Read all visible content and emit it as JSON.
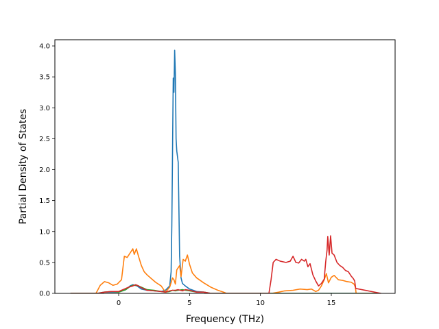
{
  "chart_data": {
    "type": "line",
    "title": "",
    "xlabel": "Frequency (THz)",
    "ylabel": "Partial Density of States",
    "xlim": [
      -4.5,
      19.5
    ],
    "ylim": [
      0,
      4.1
    ],
    "xticks": [
      0,
      5,
      10,
      15
    ],
    "xtick_labels": [
      "0",
      "5",
      "10",
      "15"
    ],
    "yticks": [
      0.0,
      0.5,
      1.0,
      1.5,
      2.0,
      2.5,
      3.0,
      3.5,
      4.0
    ],
    "ytick_labels": [
      "0.0",
      "0.5",
      "1.0",
      "1.5",
      "2.0",
      "2.5",
      "3.0",
      "3.5",
      "4.0"
    ],
    "grid": false,
    "legend": "none",
    "series": [
      {
        "color": "#1f77b4",
        "x": [
          -3.4,
          -1.5,
          -1.0,
          -0.5,
          0.0,
          0.5,
          0.8,
          1.0,
          1.3,
          1.6,
          2.0,
          2.5,
          3.0,
          3.3,
          3.6,
          3.7,
          3.75,
          3.85,
          3.9,
          3.95,
          4.0,
          4.05,
          4.1,
          4.2,
          4.3,
          4.4,
          4.5,
          4.7,
          5.0,
          5.5,
          6.0,
          6.5,
          18.5
        ],
        "y": [
          0.0,
          0.0,
          0.02,
          0.02,
          0.02,
          0.06,
          0.12,
          0.14,
          0.12,
          0.07,
          0.05,
          0.04,
          0.03,
          0.05,
          0.12,
          0.35,
          1.1,
          3.48,
          3.25,
          3.93,
          3.55,
          2.5,
          2.3,
          2.12,
          0.6,
          0.25,
          0.16,
          0.12,
          0.07,
          0.03,
          0.02,
          0.0,
          0.0
        ]
      },
      {
        "color": "#ff7f0e",
        "x": [
          -3.4,
          -1.6,
          -1.3,
          -1.0,
          -0.7,
          -0.4,
          -0.1,
          0.2,
          0.4,
          0.6,
          0.8,
          1.0,
          1.1,
          1.25,
          1.4,
          1.6,
          1.8,
          2.0,
          2.3,
          2.6,
          3.0,
          3.3,
          3.6,
          3.8,
          3.9,
          4.0,
          4.1,
          4.3,
          4.4,
          4.55,
          4.7,
          4.85,
          5.0,
          5.2,
          5.5,
          6.0,
          6.5,
          7.0,
          7.4,
          7.6,
          10.8,
          11.3,
          11.7,
          12.3,
          12.8,
          13.3,
          13.6,
          13.9,
          14.1,
          14.3,
          14.5,
          14.65,
          14.8,
          15.0,
          15.2,
          15.5,
          15.8,
          16.1,
          16.4,
          16.6,
          16.7,
          16.75,
          18.5
        ],
        "y": [
          0.0,
          0.0,
          0.13,
          0.19,
          0.17,
          0.13,
          0.15,
          0.22,
          0.6,
          0.58,
          0.65,
          0.72,
          0.63,
          0.72,
          0.6,
          0.45,
          0.35,
          0.3,
          0.24,
          0.18,
          0.12,
          0.02,
          0.1,
          0.25,
          0.22,
          0.15,
          0.38,
          0.45,
          0.27,
          0.55,
          0.52,
          0.62,
          0.47,
          0.33,
          0.25,
          0.17,
          0.1,
          0.05,
          0.02,
          0.0,
          0.0,
          0.02,
          0.04,
          0.05,
          0.07,
          0.06,
          0.07,
          0.03,
          0.05,
          0.12,
          0.22,
          0.32,
          0.17,
          0.26,
          0.29,
          0.22,
          0.21,
          0.19,
          0.18,
          0.15,
          0.1,
          0.0,
          0.0
        ]
      },
      {
        "color": "#2ca02c",
        "x": [
          -3.4,
          -1.5,
          -1.0,
          -0.5,
          0.0,
          0.5,
          0.8,
          1.0,
          1.3,
          1.6,
          2.0,
          2.5,
          3.0,
          3.3,
          3.6,
          3.8,
          4.0,
          4.2,
          4.5,
          4.7,
          5.0,
          5.5,
          6.0,
          6.5,
          18.5
        ],
        "y": [
          0.0,
          0.0,
          0.02,
          0.03,
          0.02,
          0.06,
          0.11,
          0.13,
          0.13,
          0.1,
          0.06,
          0.05,
          0.03,
          0.02,
          0.03,
          0.05,
          0.04,
          0.05,
          0.06,
          0.05,
          0.04,
          0.02,
          0.02,
          0.0,
          0.0
        ]
      },
      {
        "color": "#d62728",
        "x": [
          -3.4,
          -1.5,
          -1.0,
          -0.5,
          0.0,
          0.4,
          0.7,
          1.0,
          1.2,
          1.4,
          1.7,
          2.0,
          2.5,
          3.0,
          3.3,
          3.6,
          3.8,
          4.0,
          4.2,
          4.5,
          4.7,
          5.0,
          5.5,
          6.0,
          6.5,
          10.6,
          10.75,
          10.9,
          11.1,
          11.4,
          11.8,
          12.1,
          12.3,
          12.5,
          12.7,
          12.9,
          13.1,
          13.2,
          13.35,
          13.5,
          13.7,
          13.9,
          14.1,
          14.3,
          14.5,
          14.6,
          14.7,
          14.75,
          14.85,
          14.95,
          15.05,
          15.2,
          15.4,
          15.6,
          15.8,
          16.0,
          16.2,
          16.4,
          16.55,
          16.65,
          16.72,
          18.5
        ],
        "y": [
          0.0,
          0.0,
          0.02,
          0.03,
          0.03,
          0.07,
          0.1,
          0.12,
          0.14,
          0.12,
          0.08,
          0.05,
          0.04,
          0.03,
          0.02,
          0.04,
          0.05,
          0.05,
          0.06,
          0.04,
          0.06,
          0.05,
          0.02,
          0.02,
          0.0,
          0.0,
          0.22,
          0.5,
          0.55,
          0.52,
          0.5,
          0.52,
          0.6,
          0.5,
          0.49,
          0.55,
          0.52,
          0.55,
          0.43,
          0.48,
          0.3,
          0.2,
          0.12,
          0.16,
          0.23,
          0.5,
          0.7,
          0.92,
          0.62,
          0.93,
          0.65,
          0.62,
          0.5,
          0.45,
          0.42,
          0.37,
          0.35,
          0.28,
          0.24,
          0.2,
          0.08,
          0.0
        ]
      }
    ]
  }
}
